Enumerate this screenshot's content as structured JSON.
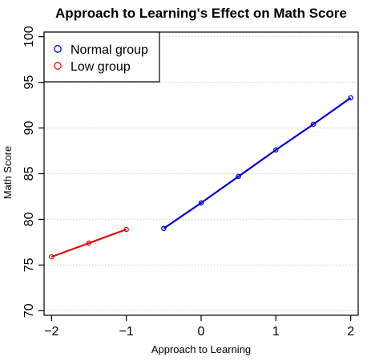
{
  "chart_data": {
    "type": "line",
    "title": "Approach to Learning's Effect on Math Score",
    "xlabel": "Approach to Learning",
    "ylabel": "Math Score",
    "xlim": [
      -2.1,
      2.1
    ],
    "ylim": [
      69.5,
      100.5
    ],
    "x_ticks": [
      -2,
      -1,
      0,
      1,
      2
    ],
    "x_tick_labels": [
      "−2",
      "−1",
      "0",
      "1",
      "2"
    ],
    "y_ticks": [
      70,
      75,
      80,
      85,
      90,
      95,
      100
    ],
    "y_tick_labels": [
      "70",
      "75",
      "80",
      "85",
      "90",
      "95",
      "100"
    ],
    "grid": "horizontal-dotted",
    "legend_position": "top-left",
    "series": [
      {
        "name": "Normal group",
        "color": "#0000cc",
        "x": [
          -0.5,
          0,
          0.5,
          1,
          1.5,
          2
        ],
        "y": [
          79.0,
          81.8,
          84.7,
          87.6,
          90.4,
          93.3
        ]
      },
      {
        "name": "Low group",
        "color": "#dd1111",
        "x": [
          -2,
          -1.5,
          -1
        ],
        "y": [
          75.9,
          77.4,
          78.9
        ]
      }
    ]
  }
}
